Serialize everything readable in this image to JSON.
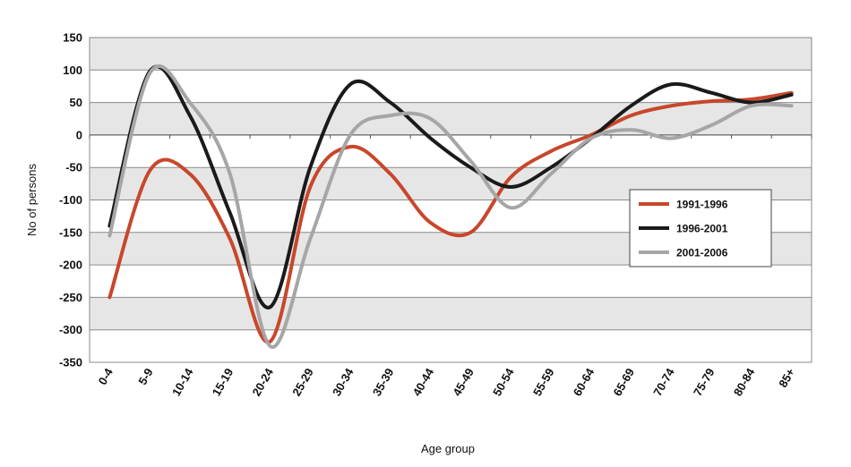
{
  "chart_data": {
    "type": "line",
    "title": "",
    "xlabel": "Age group",
    "ylabel": "No of persons",
    "categories": [
      "0-4",
      "5-9",
      "10-14",
      "15-19",
      "20-24",
      "25-29",
      "30-34",
      "35-39",
      "40-44",
      "45-49",
      "50-54",
      "55-59",
      "60-64",
      "65-69",
      "70-74",
      "75-79",
      "80-84",
      "85+"
    ],
    "ylim": [
      -350,
      150
    ],
    "yticks": [
      150,
      100,
      50,
      0,
      -50,
      -100,
      -150,
      -200,
      -250,
      -300,
      -350
    ],
    "grid": true,
    "legend_position": "right",
    "series": [
      {
        "name": "1991-1996",
        "color": "#c8472b",
        "values": [
          -250,
          -55,
          -60,
          -160,
          -318,
          -80,
          -18,
          -60,
          -135,
          -150,
          -65,
          -25,
          0,
          30,
          45,
          52,
          55,
          65
        ]
      },
      {
        "name": "1996-2001",
        "color": "#1a1a1a",
        "values": [
          -140,
          98,
          30,
          -120,
          -265,
          -50,
          78,
          50,
          -5,
          -50,
          -80,
          -50,
          -5,
          45,
          78,
          65,
          50,
          62
        ]
      },
      {
        "name": "2001-2006",
        "color": "#a6a6a6",
        "values": [
          -155,
          95,
          50,
          -60,
          -325,
          -160,
          0,
          30,
          25,
          -40,
          -112,
          -60,
          -5,
          8,
          -5,
          15,
          45,
          45
        ]
      }
    ]
  }
}
